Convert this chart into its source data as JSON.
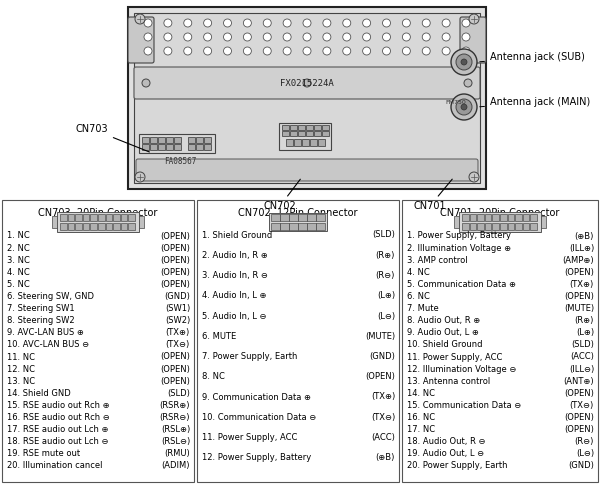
{
  "bg_color": "#ffffff",
  "cn703": {
    "title": "CN703  20Pin Connector",
    "pins": [
      [
        "1. NC",
        "(OPEN)"
      ],
      [
        "2. NC",
        "(OPEN)"
      ],
      [
        "3. NC",
        "(OPEN)"
      ],
      [
        "4. NC",
        "(OPEN)"
      ],
      [
        "5. NC",
        "(OPEN)"
      ],
      [
        "6. Steering SW, GND",
        "(GND)"
      ],
      [
        "7. Steering SW1",
        "(SW1)"
      ],
      [
        "8. Steering SW2",
        "(SW2)"
      ],
      [
        "9. AVC-LAN BUS ⊕",
        "(TX⊕)"
      ],
      [
        "10. AVC-LAN BUS ⊖",
        "(TX⊖)"
      ],
      [
        "11. NC",
        "(OPEN)"
      ],
      [
        "12. NC",
        "(OPEN)"
      ],
      [
        "13. NC",
        "(OPEN)"
      ],
      [
        "14. Shield GND",
        "(SLD)"
      ],
      [
        "15. RSE audio out Rch ⊕",
        "(RSR⊕)"
      ],
      [
        "16. RSE audio out Rch ⊖",
        "(RSR⊖)"
      ],
      [
        "17. RSE audio out Lch ⊕",
        "(RSL⊕)"
      ],
      [
        "18. RSE audio out Lch ⊖",
        "(RSL⊖)"
      ],
      [
        "19. RSE mute out",
        "(RMU)"
      ],
      [
        "20. Illumination cancel",
        "(ADIM)"
      ]
    ]
  },
  "cn702": {
    "title": "CN702  12Pin Connector",
    "pins": [
      [
        "1. Shield Ground",
        "(SLD)"
      ],
      [
        "2. Audio In, R ⊕",
        "(R⊕)"
      ],
      [
        "3. Audio In, R ⊖",
        "(R⊖)"
      ],
      [
        "4. Audio In, L ⊕",
        "(L⊕)"
      ],
      [
        "5. Audio In, L ⊖",
        "(L⊖)"
      ],
      [
        "6. MUTE",
        "(MUTE)"
      ],
      [
        "7. Power Supply, Earth",
        "(GND)"
      ],
      [
        "8. NC",
        "(OPEN)"
      ],
      [
        "9. Communication Data ⊕",
        "(TX⊕)"
      ],
      [
        "10. Communication Data ⊖",
        "(TX⊖)"
      ],
      [
        "11. Power Supply, ACC",
        "(ACC)"
      ],
      [
        "12. Power Supply, Battery",
        "(⊕B)"
      ]
    ]
  },
  "cn701": {
    "title": "CN701  20Pin Connector",
    "pins": [
      [
        "1. Power Supply, Battery",
        "(⊕B)"
      ],
      [
        "2. Illumination Voltage ⊕",
        "(ILL⊕)"
      ],
      [
        "3. AMP control",
        "(AMP⊕)"
      ],
      [
        "4. NC",
        "(OPEN)"
      ],
      [
        "5. Communication Data ⊕",
        "(TX⊕)"
      ],
      [
        "6. NC",
        "(OPEN)"
      ],
      [
        "7. Mute",
        "(MUTE)"
      ],
      [
        "8. Audio Out, R ⊕",
        "(R⊕)"
      ],
      [
        "9. Audio Out, L ⊕",
        "(L⊕)"
      ],
      [
        "10. Shield Ground",
        "(SLD)"
      ],
      [
        "11. Power Supply, ACC",
        "(ACC)"
      ],
      [
        "12. Illumination Voltage ⊖",
        "(ILL⊖)"
      ],
      [
        "13. Antenna control",
        "(ANT⊕)"
      ],
      [
        "14. NC",
        "(OPEN)"
      ],
      [
        "15. Communication Data ⊖",
        "(TX⊖)"
      ],
      [
        "16. NC",
        "(OPEN)"
      ],
      [
        "17. NC",
        "(OPEN)"
      ],
      [
        "18. Audio Out, R ⊖",
        "(R⊖)"
      ],
      [
        "19. Audio Out, L ⊖",
        "(L⊖)"
      ],
      [
        "20. Power Supply, Earth",
        "(GND)"
      ]
    ]
  },
  "ant_sub": "Antenna jack (SUB)",
  "ant_main": "Antenna jack (MAIN)",
  "cn703_label": "CN703",
  "cn702_label": "CN702",
  "cn701_label": "CN701"
}
